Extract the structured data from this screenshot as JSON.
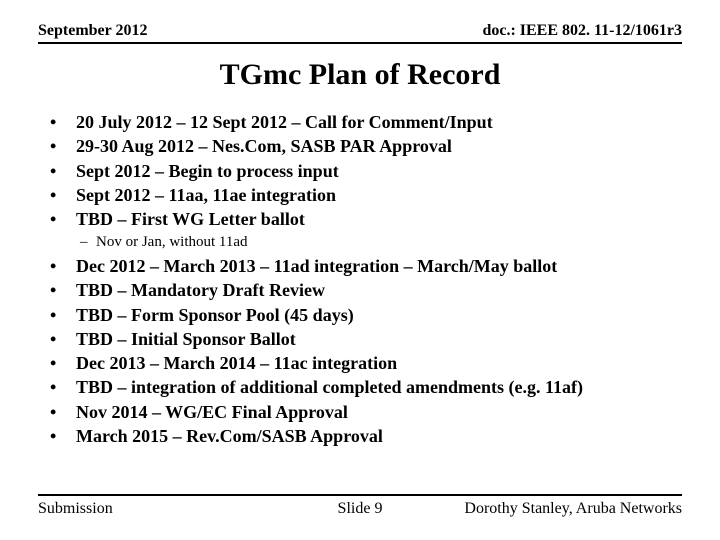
{
  "header": {
    "date": "September 2012",
    "docref": "doc.: IEEE 802. 11-12/1061r3"
  },
  "title": "TGmc Plan of Record",
  "bullets_top": [
    "20 July 2012 – 12 Sept 2012 – Call for Comment/Input",
    "29-30 Aug 2012 – Nes.Com, SASB PAR Approval",
    "Sept 2012 – Begin to process input",
    "Sept 2012 – 11aa, 11ae integration",
    "TBD – First WG Letter ballot"
  ],
  "sub_note": "Nov or Jan, without 11ad",
  "bullets_bottom": [
    "Dec 2012 – March 2013  – 11ad integration – March/May ballot",
    "TBD – Mandatory Draft Review",
    "TBD – Form Sponsor Pool (45 days)",
    "TBD – Initial Sponsor Ballot",
    "Dec 2013 – March 2014 – 11ac integration",
    "TBD – integration of additional completed amendments (e.g. 11af)",
    "Nov 2014 – WG/EC Final Approval",
    "March 2015 – Rev.Com/SASB Approval"
  ],
  "footer": {
    "left": "Submission",
    "center": "Slide 9",
    "right": "Dorothy Stanley, Aruba Networks"
  }
}
